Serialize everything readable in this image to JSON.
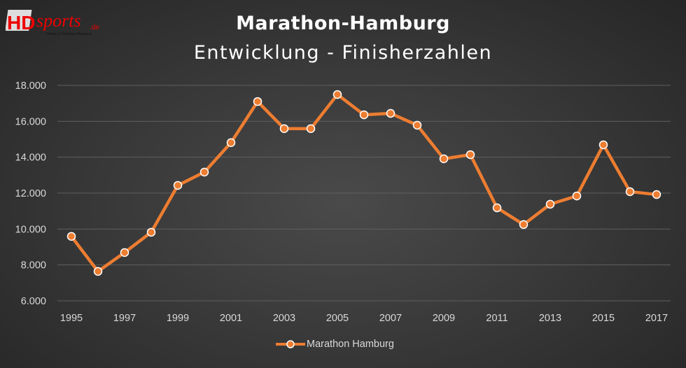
{
  "logo": {
    "text": "HDsports",
    "suffix": ".de",
    "tagline": "Home of Distance Runners"
  },
  "chart_data": {
    "type": "line",
    "title": "Marathon-Hamburg",
    "subtitle": "Entwicklung - Finisherzahlen",
    "xlabel": "",
    "ylabel": "",
    "x": [
      1995,
      1996,
      1997,
      1998,
      1999,
      2000,
      2001,
      2002,
      2003,
      2004,
      2005,
      2006,
      2007,
      2008,
      2009,
      2010,
      2011,
      2012,
      2013,
      2014,
      2015,
      2016,
      2017
    ],
    "x_tick_labels": [
      "1995",
      "1997",
      "1999",
      "2001",
      "2003",
      "2005",
      "2007",
      "2009",
      "2011",
      "2013",
      "2015",
      "2017"
    ],
    "ylim": [
      6000,
      18000
    ],
    "y_ticks": [
      6000,
      8000,
      10000,
      12000,
      14000,
      16000,
      18000
    ],
    "y_tick_labels": [
      "6.000",
      "8.000",
      "10.000",
      "12.000",
      "14.000",
      "16.000",
      "18.000"
    ],
    "grid": true,
    "legend": "bottom",
    "series": [
      {
        "name": "Marathon Hamburg",
        "color": "#ed7d31",
        "values": [
          9590,
          7640,
          8690,
          9820,
          12430,
          13170,
          14810,
          17100,
          15590,
          15590,
          17490,
          16360,
          16440,
          15780,
          13910,
          14140,
          11180,
          10250,
          11380,
          11840,
          14690,
          12080,
          11920
        ]
      }
    ]
  }
}
